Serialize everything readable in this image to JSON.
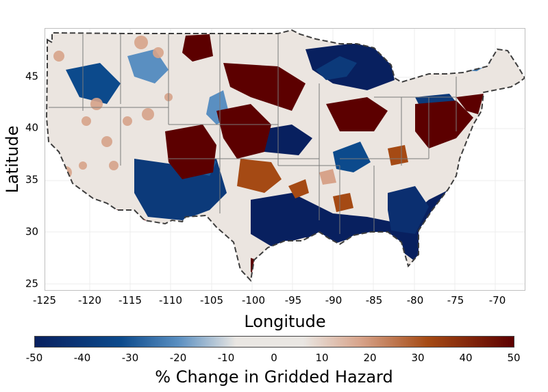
{
  "map": {
    "x_ticks": [
      "-125",
      "-120",
      "-115",
      "-110",
      "-105",
      "-100",
      "-95",
      "-90",
      "-85",
      "-80",
      "-75",
      "-70"
    ],
    "y_ticks": [
      "25",
      "30",
      "35",
      "40",
      "45"
    ],
    "x_axis_title": "Longitude",
    "y_axis_title": "Latitude",
    "projection": "equirectangular (lon/lat)",
    "extent": {
      "lon": [
        -125.5,
        -66.5
      ],
      "lat": [
        24.3,
        49.5
      ]
    },
    "grid": true
  },
  "colorbar": {
    "ticks": [
      "-50",
      "-40",
      "-30",
      "-20",
      "-10",
      "0",
      "10",
      "20",
      "30",
      "40",
      "50"
    ],
    "title": "% Change in Gridded Hazard",
    "range": [
      -50,
      50
    ],
    "colors": [
      "#08205f",
      "#0c4a8c",
      "#5a8fc1",
      "#e9e6e2",
      "#d7a38a",
      "#a54a14",
      "#5c0000"
    ]
  }
}
